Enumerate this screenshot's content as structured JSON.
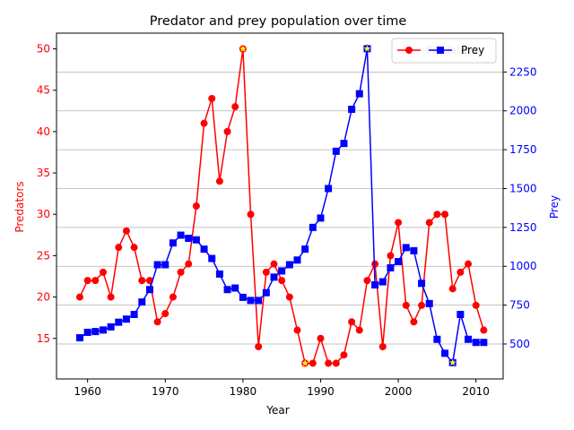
{
  "chart_data": {
    "type": "line",
    "title": "Predator and prey population over time",
    "xlabel": "Year",
    "y1label": "Predators",
    "y2label": "Prey",
    "xlim": [
      1956,
      2013.5
    ],
    "y1lim": [
      10.1,
      51.9
    ],
    "y2lim": [
      275,
      2500
    ],
    "xticks": [
      1960,
      1970,
      1980,
      1990,
      2000,
      2010
    ],
    "y1ticks": [
      15,
      20,
      25,
      30,
      35,
      40,
      45,
      50
    ],
    "y2ticks": [
      500,
      750,
      1000,
      1250,
      1500,
      1750,
      2000,
      2250
    ],
    "grid": "y-right-axis",
    "legend_position": "top-right",
    "colors": {
      "predators": "#ff0000",
      "prey": "#0000ff",
      "highlight": "#ffff00"
    },
    "x": [
      1959,
      1960,
      1961,
      1962,
      1963,
      1964,
      1965,
      1966,
      1967,
      1968,
      1969,
      1970,
      1971,
      1972,
      1973,
      1974,
      1975,
      1976,
      1977,
      1978,
      1979,
      1980,
      1981,
      1982,
      1983,
      1984,
      1985,
      1986,
      1987,
      1988,
      1989,
      1990,
      1991,
      1992,
      1993,
      1994,
      1995,
      1996,
      1997,
      1998,
      1999,
      2000,
      2001,
      2002,
      2003,
      2004,
      2005,
      2006,
      2007,
      2008,
      2009,
      2010,
      2011
    ],
    "series": [
      {
        "name": "Predators",
        "axis": "left",
        "marker": "circle",
        "values": [
          20,
          22,
          22,
          23,
          20,
          26,
          28,
          26,
          22,
          22,
          17,
          18,
          20,
          23,
          24,
          31,
          41,
          44,
          34,
          40,
          43,
          50,
          30,
          14,
          23,
          24,
          22,
          20,
          16,
          12,
          12,
          15,
          12,
          12,
          13,
          17,
          16,
          22,
          24,
          14,
          25,
          29,
          19,
          17,
          19,
          29,
          30,
          30,
          21,
          23,
          24,
          19,
          16
        ],
        "highlight_index": [
          21,
          29
        ]
      },
      {
        "name": "Prey",
        "axis": "right",
        "marker": "square",
        "values": [
          540,
          575,
          580,
          590,
          610,
          640,
          660,
          690,
          770,
          850,
          1010,
          1010,
          1150,
          1200,
          1180,
          1170,
          1110,
          1050,
          950,
          850,
          860,
          800,
          780,
          780,
          830,
          930,
          970,
          1010,
          1040,
          1110,
          1250,
          1310,
          1500,
          1740,
          1790,
          2010,
          2110,
          2400,
          880,
          900,
          990,
          1030,
          1120,
          1100,
          890,
          760,
          530,
          440,
          380,
          690,
          530,
          510,
          510
        ],
        "highlight_index": [
          37,
          48
        ]
      }
    ]
  }
}
